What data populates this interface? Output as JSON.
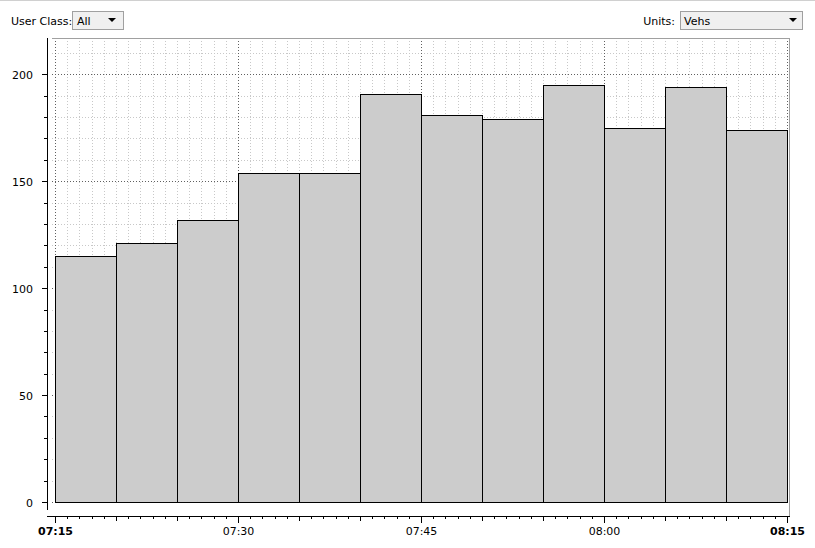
{
  "controls": {
    "user_class_label": "User Class:",
    "user_class": "All",
    "units_label": "Units:",
    "units": "Vehs"
  },
  "chart_data": {
    "type": "histogram",
    "bins": [
      435,
      440,
      445,
      450,
      455,
      460,
      465,
      470,
      475,
      480,
      485,
      490,
      495
    ],
    "values": [
      115,
      121,
      132,
      154,
      154,
      191,
      181,
      179,
      195,
      175,
      194,
      174
    ],
    "color": "#cccccc",
    "xlim": [
      435,
      495
    ],
    "xticks": [
      {
        "value": 435,
        "label": "07:15"
      },
      {
        "value": 450,
        "label": "07:30"
      },
      {
        "value": 465,
        "label": "07:45"
      },
      {
        "value": 480,
        "label": "08:00"
      },
      {
        "value": 495,
        "label": "08:15"
      }
    ],
    "ylim": [
      0,
      217
    ],
    "yticks": [
      0,
      50,
      100,
      150,
      200
    ],
    "grid": true
  }
}
